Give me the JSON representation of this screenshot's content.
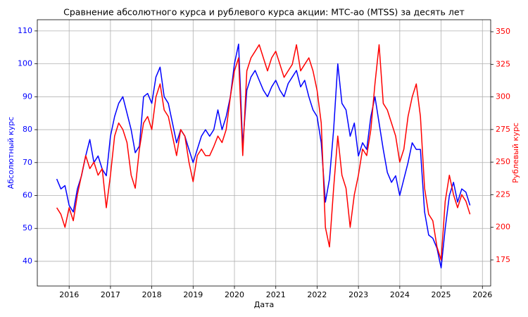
{
  "chart_data": {
    "type": "line",
    "title": "Сравнение абсолютного курса и рублевого курса акции: МТС-ао (MTSS) за десять лет",
    "xlabel": "Дата",
    "ylabel": "Абсолютный курс",
    "y2label": "Рублевый курс",
    "x": [
      2015.7,
      2015.8,
      2015.9,
      2016.0,
      2016.1,
      2016.2,
      2016.3,
      2016.4,
      2016.5,
      2016.6,
      2016.7,
      2016.8,
      2016.9,
      2017.0,
      2017.1,
      2017.2,
      2017.3,
      2017.4,
      2017.5,
      2017.6,
      2017.7,
      2017.8,
      2017.9,
      2018.0,
      2018.1,
      2018.2,
      2018.3,
      2018.4,
      2018.5,
      2018.6,
      2018.7,
      2018.8,
      2018.9,
      2019.0,
      2019.1,
      2019.2,
      2019.3,
      2019.4,
      2019.5,
      2019.6,
      2019.7,
      2019.8,
      2019.9,
      2020.0,
      2020.1,
      2020.2,
      2020.3,
      2020.4,
      2020.5,
      2020.6,
      2020.7,
      2020.8,
      2020.9,
      2021.0,
      2021.1,
      2021.2,
      2021.3,
      2021.4,
      2021.5,
      2021.6,
      2021.7,
      2021.8,
      2021.9,
      2022.0,
      2022.1,
      2022.2,
      2022.3,
      2022.4,
      2022.5,
      2022.6,
      2022.7,
      2022.8,
      2022.9,
      2023.0,
      2023.1,
      2023.2,
      2023.3,
      2023.4,
      2023.5,
      2023.6,
      2023.7,
      2023.8,
      2023.9,
      2024.0,
      2024.1,
      2024.2,
      2024.3,
      2024.4,
      2024.5,
      2024.6,
      2024.7,
      2024.8,
      2024.9,
      2025.0,
      2025.1,
      2025.2,
      2025.3,
      2025.4,
      2025.5,
      2025.6,
      2025.7
    ],
    "series": [
      {
        "name": "Абсолютный курс",
        "color": "#0000ff",
        "axis": "y",
        "values": [
          65,
          62,
          63,
          57,
          55,
          62,
          66,
          72,
          77,
          70,
          72,
          68,
          66,
          78,
          84,
          88,
          90,
          85,
          80,
          73,
          75,
          90,
          91,
          88,
          96,
          99,
          90,
          88,
          82,
          76,
          80,
          78,
          74,
          70,
          74,
          78,
          80,
          78,
          80,
          86,
          80,
          84,
          90,
          100,
          106,
          75,
          92,
          96,
          98,
          95,
          92,
          90,
          93,
          95,
          92,
          90,
          94,
          96,
          98,
          93,
          95,
          90,
          86,
          84,
          76,
          58,
          65,
          80,
          100,
          88,
          86,
          78,
          82,
          72,
          76,
          74,
          84,
          90,
          82,
          74,
          67,
          64,
          66,
          60,
          65,
          70,
          76,
          74,
          74,
          55,
          48,
          47,
          44,
          38,
          50,
          60,
          64,
          58,
          62,
          61,
          57
        ]
      },
      {
        "name": "Рублевый курс",
        "color": "#ff0000",
        "axis": "y2",
        "values": [
          215,
          210,
          200,
          215,
          205,
          225,
          240,
          255,
          245,
          250,
          240,
          245,
          215,
          240,
          270,
          280,
          275,
          265,
          240,
          230,
          260,
          280,
          285,
          275,
          300,
          310,
          290,
          285,
          270,
          255,
          275,
          270,
          250,
          235,
          255,
          260,
          255,
          255,
          262,
          270,
          265,
          275,
          300,
          320,
          330,
          255,
          320,
          330,
          335,
          340,
          330,
          320,
          330,
          335,
          325,
          315,
          320,
          325,
          340,
          320,
          325,
          330,
          320,
          305,
          280,
          200,
          185,
          230,
          270,
          240,
          230,
          200,
          225,
          240,
          260,
          255,
          275,
          310,
          340,
          295,
          290,
          280,
          270,
          250,
          260,
          285,
          300,
          310,
          285,
          230,
          210,
          205,
          185,
          175,
          220,
          240,
          225,
          215,
          225,
          220,
          210
        ]
      }
    ],
    "xlim": [
      2015.23,
      2026.2
    ],
    "xticks": [
      2016,
      2017,
      2018,
      2019,
      2020,
      2021,
      2022,
      2023,
      2024,
      2025,
      2026
    ],
    "ylim": [
      32.5,
      113.4
    ],
    "yticks": [
      40,
      50,
      60,
      70,
      80,
      90,
      100,
      110
    ],
    "y2lim": [
      155.0,
      359.2
    ],
    "y2ticks": [
      175,
      200,
      225,
      250,
      275,
      300,
      325,
      350
    ],
    "grid": true
  }
}
